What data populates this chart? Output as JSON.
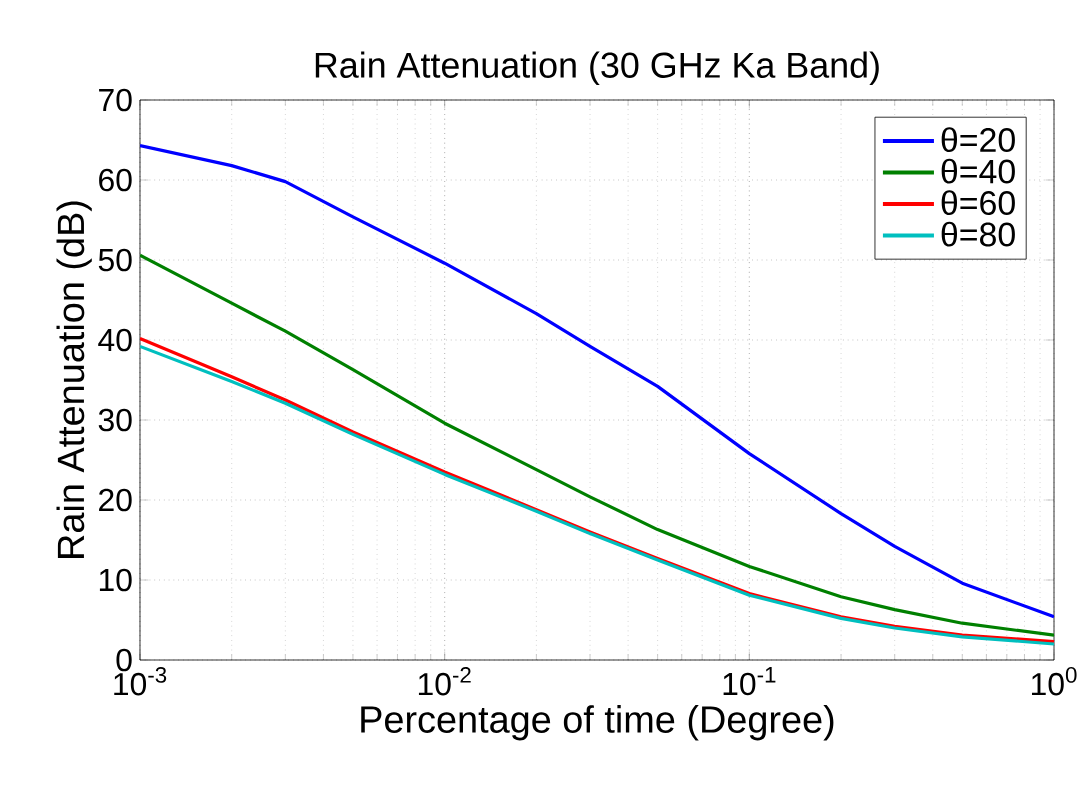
{
  "chart_data": {
    "type": "line",
    "title": "Rain Attenuation (30 GHz Ka Band)",
    "xlabel": "Percentage of time (Degree)",
    "ylabel": "Rain Attenuation (dB)",
    "log": "x",
    "xlim": [
      0.001,
      1
    ],
    "ylim": [
      0,
      70
    ],
    "xticks": [
      {
        "value": 0.001,
        "label": "10$^{-3}$"
      },
      {
        "value": 0.01,
        "label": "10$^{-2}$"
      },
      {
        "value": 0.1,
        "label": "10$^{-1}$"
      },
      {
        "value": 1,
        "label": "10$^{0}$"
      }
    ],
    "yticks": [
      0,
      10,
      20,
      30,
      40,
      50,
      60,
      70
    ],
    "x": [
      0.001,
      0.002,
      0.003,
      0.005,
      0.01,
      0.02,
      0.03,
      0.05,
      0.1,
      0.2,
      0.3,
      0.5,
      1
    ],
    "series": [
      {
        "name": "θ=20",
        "color": "#0000ff",
        "values": [
          64.3,
          61.8,
          59.8,
          55.4,
          49.6,
          43.3,
          39.2,
          34.2,
          25.8,
          18.3,
          14.2,
          9.6,
          5.4
        ]
      },
      {
        "name": "θ=40",
        "color": "#008000",
        "values": [
          50.6,
          44.6,
          41.1,
          36.3,
          29.6,
          23.8,
          20.4,
          16.3,
          11.7,
          7.9,
          6.3,
          4.6,
          3.1
        ]
      },
      {
        "name": "θ=60",
        "color": "#ff0000",
        "values": [
          40.2,
          35.4,
          32.5,
          28.5,
          23.5,
          18.8,
          16.0,
          12.7,
          8.3,
          5.4,
          4.2,
          3.1,
          2.3
        ]
      },
      {
        "name": "θ=80",
        "color": "#00bfbf",
        "values": [
          39.2,
          34.8,
          32.1,
          28.2,
          23.2,
          18.6,
          15.8,
          12.5,
          8.1,
          5.2,
          4.0,
          2.9,
          2.0
        ]
      }
    ],
    "grid": true,
    "legend": "top right",
    "line_style": "solid",
    "marker": "none"
  }
}
